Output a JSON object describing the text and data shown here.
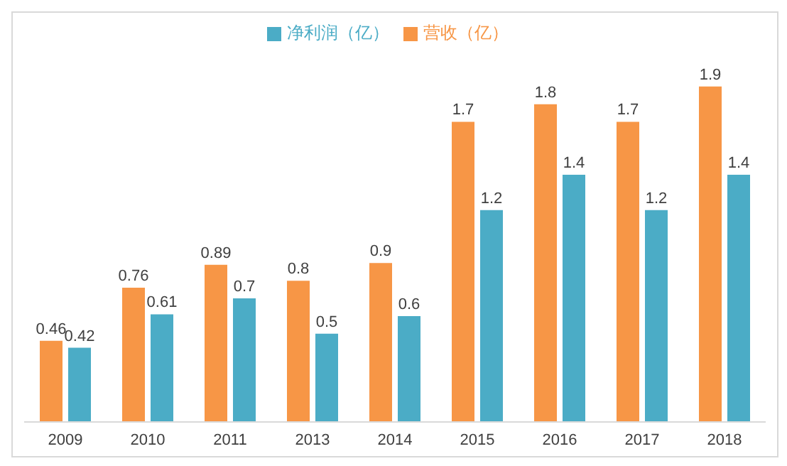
{
  "chart_data": {
    "type": "bar",
    "categories": [
      "2009",
      "2010",
      "2011",
      "2013",
      "2014",
      "2015",
      "2016",
      "2017",
      "2018"
    ],
    "series": [
      {
        "name": "营收（亿）",
        "color": "#f79646",
        "values": [
          0.46,
          0.76,
          0.89,
          0.8,
          0.9,
          1.7,
          1.8,
          1.7,
          1.9
        ]
      },
      {
        "name": "净利润（亿）",
        "color": "#4bacc6",
        "values": [
          0.42,
          0.61,
          0.7,
          0.5,
          0.6,
          1.2,
          1.4,
          1.2,
          1.4
        ]
      }
    ],
    "data_labels": true,
    "legend": "top",
    "grid": false
  }
}
